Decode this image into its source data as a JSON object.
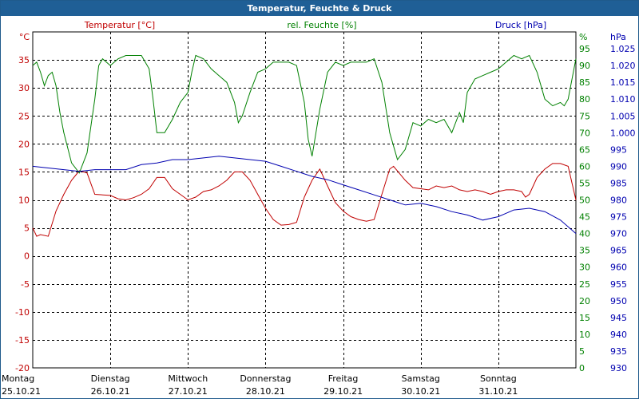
{
  "window": {
    "title": "Temperatur, Feuchte & Druck"
  },
  "chart_data": {
    "type": "line",
    "title": "Temperatur, Feuchte & Druck",
    "grid": true,
    "legend": "top",
    "x_axis": {
      "range_days": [
        0,
        7
      ],
      "day_labels": [
        {
          "weekday": "Montag",
          "date": "25.10.21",
          "day": 0
        },
        {
          "weekday": "Dienstag",
          "date": "26.10.21",
          "day": 1
        },
        {
          "weekday": "Mittwoch",
          "date": "27.10.21",
          "day": 2
        },
        {
          "weekday": "Donnerstag",
          "date": "28.10.21",
          "day": 3
        },
        {
          "weekday": "Freitag",
          "date": "29.10.21",
          "day": 4
        },
        {
          "weekday": "Samstag",
          "date": "30.10.21",
          "day": 5
        },
        {
          "weekday": "Sonntag",
          "date": "31.10.21",
          "day": 6
        }
      ]
    },
    "axes": {
      "temperature": {
        "unit": "°C",
        "min": -20,
        "max": 40,
        "step": 5,
        "color": "#c00000"
      },
      "humidity": {
        "unit": "%",
        "min": 0,
        "max": 100,
        "step": 5,
        "color": "#008000"
      },
      "pressure": {
        "unit": "hPa",
        "min": 930,
        "max": 1030,
        "step": 5,
        "color": "#0000b0"
      }
    },
    "series": [
      {
        "name": "Temperatur [°C]",
        "axis": "temperature",
        "color": "#c00000",
        "points": [
          [
            0.0,
            5
          ],
          [
            0.05,
            3.5
          ],
          [
            0.1,
            3.8
          ],
          [
            0.2,
            3.5
          ],
          [
            0.3,
            8
          ],
          [
            0.4,
            11
          ],
          [
            0.5,
            13.5
          ],
          [
            0.6,
            15.2
          ],
          [
            0.7,
            14.8
          ],
          [
            0.8,
            11
          ],
          [
            1.0,
            10.8
          ],
          [
            1.1,
            10.2
          ],
          [
            1.2,
            10
          ],
          [
            1.3,
            10.4
          ],
          [
            1.4,
            11
          ],
          [
            1.5,
            12
          ],
          [
            1.6,
            14
          ],
          [
            1.7,
            14
          ],
          [
            1.8,
            12
          ],
          [
            1.9,
            11
          ],
          [
            2.0,
            10
          ],
          [
            2.1,
            10.5
          ],
          [
            2.2,
            11.5
          ],
          [
            2.3,
            11.8
          ],
          [
            2.4,
            12.5
          ],
          [
            2.5,
            13.5
          ],
          [
            2.6,
            15
          ],
          [
            2.7,
            15
          ],
          [
            2.8,
            13.5
          ],
          [
            2.9,
            11
          ],
          [
            3.0,
            8.5
          ],
          [
            3.1,
            6.5
          ],
          [
            3.2,
            5.5
          ],
          [
            3.3,
            5.6
          ],
          [
            3.4,
            6
          ],
          [
            3.5,
            10.5
          ],
          [
            3.6,
            13.5
          ],
          [
            3.7,
            15.5
          ],
          [
            3.8,
            12.5
          ],
          [
            3.9,
            9.5
          ],
          [
            4.0,
            8
          ],
          [
            4.1,
            7
          ],
          [
            4.2,
            6.5
          ],
          [
            4.3,
            6.2
          ],
          [
            4.4,
            6.5
          ],
          [
            4.5,
            11
          ],
          [
            4.6,
            15.5
          ],
          [
            4.65,
            16
          ],
          [
            4.8,
            13.5
          ],
          [
            4.9,
            12.2
          ],
          [
            5.0,
            12
          ],
          [
            5.1,
            11.8
          ],
          [
            5.2,
            12.5
          ],
          [
            5.3,
            12.2
          ],
          [
            5.4,
            12.5
          ],
          [
            5.5,
            11.8
          ],
          [
            5.6,
            11.5
          ],
          [
            5.7,
            11.8
          ],
          [
            5.8,
            11.5
          ],
          [
            5.9,
            11
          ],
          [
            6.0,
            11.5
          ],
          [
            6.1,
            11.8
          ],
          [
            6.2,
            11.8
          ],
          [
            6.3,
            11.5
          ],
          [
            6.35,
            10.5
          ],
          [
            6.4,
            11
          ],
          [
            6.5,
            14
          ],
          [
            6.6,
            15.5
          ],
          [
            6.7,
            16.5
          ],
          [
            6.8,
            16.5
          ],
          [
            6.9,
            16
          ],
          [
            6.95,
            13
          ],
          [
            7.0,
            10
          ]
        ]
      },
      {
        "name": "rel. Feuchte [%]",
        "axis": "humidity",
        "color": "#008000",
        "points": [
          [
            0.0,
            90
          ],
          [
            0.05,
            91
          ],
          [
            0.1,
            88
          ],
          [
            0.15,
            84
          ],
          [
            0.2,
            87
          ],
          [
            0.25,
            88
          ],
          [
            0.3,
            84
          ],
          [
            0.35,
            76
          ],
          [
            0.4,
            70
          ],
          [
            0.5,
            61
          ],
          [
            0.6,
            58
          ],
          [
            0.7,
            64
          ],
          [
            0.8,
            80
          ],
          [
            0.85,
            90
          ],
          [
            0.9,
            92
          ],
          [
            1.0,
            90
          ],
          [
            1.1,
            92
          ],
          [
            1.2,
            93
          ],
          [
            1.3,
            93
          ],
          [
            1.4,
            93
          ],
          [
            1.5,
            89
          ],
          [
            1.55,
            80
          ],
          [
            1.6,
            70
          ],
          [
            1.7,
            70
          ],
          [
            1.8,
            74
          ],
          [
            1.9,
            79
          ],
          [
            2.0,
            82
          ],
          [
            2.05,
            88
          ],
          [
            2.1,
            93
          ],
          [
            2.2,
            92
          ],
          [
            2.3,
            89
          ],
          [
            2.4,
            87
          ],
          [
            2.5,
            85
          ],
          [
            2.6,
            79
          ],
          [
            2.65,
            73
          ],
          [
            2.7,
            75
          ],
          [
            2.8,
            82
          ],
          [
            2.9,
            88
          ],
          [
            3.0,
            89
          ],
          [
            3.1,
            91
          ],
          [
            3.2,
            91
          ],
          [
            3.3,
            91
          ],
          [
            3.4,
            90
          ],
          [
            3.5,
            79
          ],
          [
            3.55,
            68
          ],
          [
            3.6,
            63
          ],
          [
            3.7,
            77
          ],
          [
            3.8,
            88
          ],
          [
            3.9,
            91
          ],
          [
            4.0,
            90
          ],
          [
            4.1,
            91
          ],
          [
            4.2,
            91
          ],
          [
            4.3,
            91
          ],
          [
            4.4,
            92
          ],
          [
            4.5,
            85
          ],
          [
            4.6,
            70
          ],
          [
            4.7,
            62
          ],
          [
            4.8,
            65
          ],
          [
            4.9,
            73
          ],
          [
            5.0,
            72
          ],
          [
            5.1,
            74
          ],
          [
            5.2,
            73
          ],
          [
            5.3,
            74
          ],
          [
            5.4,
            70
          ],
          [
            5.5,
            76
          ],
          [
            5.55,
            73
          ],
          [
            5.6,
            82
          ],
          [
            5.7,
            86
          ],
          [
            5.8,
            87
          ],
          [
            5.9,
            88
          ],
          [
            6.0,
            89
          ],
          [
            6.1,
            91
          ],
          [
            6.2,
            93
          ],
          [
            6.3,
            92
          ],
          [
            6.4,
            93
          ],
          [
            6.5,
            88
          ],
          [
            6.6,
            80
          ],
          [
            6.7,
            78
          ],
          [
            6.8,
            79
          ],
          [
            6.85,
            78
          ],
          [
            6.9,
            80
          ],
          [
            7.0,
            92
          ]
        ]
      },
      {
        "name": "Druck [hPa]",
        "axis": "pressure",
        "color": "#0000b0",
        "points": [
          [
            0.0,
            990
          ],
          [
            0.2,
            989.5
          ],
          [
            0.4,
            989
          ],
          [
            0.6,
            988.5
          ],
          [
            0.8,
            989
          ],
          [
            1.0,
            989
          ],
          [
            1.2,
            989
          ],
          [
            1.4,
            990.5
          ],
          [
            1.6,
            991
          ],
          [
            1.8,
            992
          ],
          [
            2.0,
            992
          ],
          [
            2.2,
            992.5
          ],
          [
            2.4,
            993
          ],
          [
            2.6,
            992.5
          ],
          [
            2.8,
            992
          ],
          [
            3.0,
            991.5
          ],
          [
            3.2,
            990
          ],
          [
            3.4,
            988.5
          ],
          [
            3.6,
            987
          ],
          [
            3.8,
            986
          ],
          [
            4.0,
            984.5
          ],
          [
            4.2,
            983
          ],
          [
            4.4,
            981.5
          ],
          [
            4.6,
            980
          ],
          [
            4.8,
            978.5
          ],
          [
            5.0,
            979
          ],
          [
            5.2,
            978
          ],
          [
            5.4,
            976.5
          ],
          [
            5.6,
            975.5
          ],
          [
            5.8,
            974
          ],
          [
            6.0,
            975
          ],
          [
            6.2,
            977
          ],
          [
            6.4,
            977.5
          ],
          [
            6.6,
            976.5
          ],
          [
            6.8,
            974
          ],
          [
            7.0,
            970
          ]
        ]
      }
    ]
  }
}
